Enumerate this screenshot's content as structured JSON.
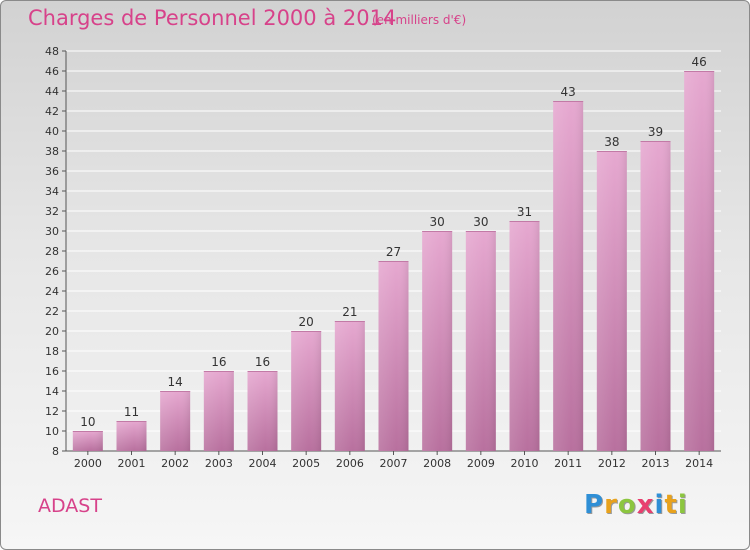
{
  "header": {
    "title": "Charges de Personnel 2000 à 2014",
    "subtitle": "(en milliers d'€)"
  },
  "footer": {
    "commune": "ADAST",
    "logo_letters": [
      "P",
      "r",
      "o",
      "x",
      "i",
      "t",
      "i"
    ],
    "logo_colors": [
      "#2f8fd6",
      "#e8a21c",
      "#8cc63f",
      "#e83f6f",
      "#2f8fd6",
      "#e8a21c",
      "#8cc63f"
    ]
  },
  "chart_data": {
    "type": "bar",
    "title": "Charges de Personnel 2000 à 2014",
    "subtitle": "(en milliers d'€)",
    "categories": [
      "2000",
      "2001",
      "2002",
      "2003",
      "2004",
      "2005",
      "2006",
      "2007",
      "2008",
      "2009",
      "2010",
      "2011",
      "2012",
      "2013",
      "2014"
    ],
    "values": [
      10,
      11,
      14,
      16,
      16,
      20,
      21,
      27,
      30,
      30,
      31,
      43,
      38,
      39,
      46
    ],
    "ylim": [
      8,
      48
    ],
    "yticks": [
      8,
      10,
      12,
      14,
      16,
      18,
      20,
      22,
      24,
      26,
      28,
      30,
      32,
      34,
      36,
      38,
      40,
      42,
      44,
      46,
      48
    ],
    "grid": true,
    "bar_color_top": "#e6a8d0",
    "bar_color_bottom": "#b8709e",
    "label_color": "#333333"
  }
}
